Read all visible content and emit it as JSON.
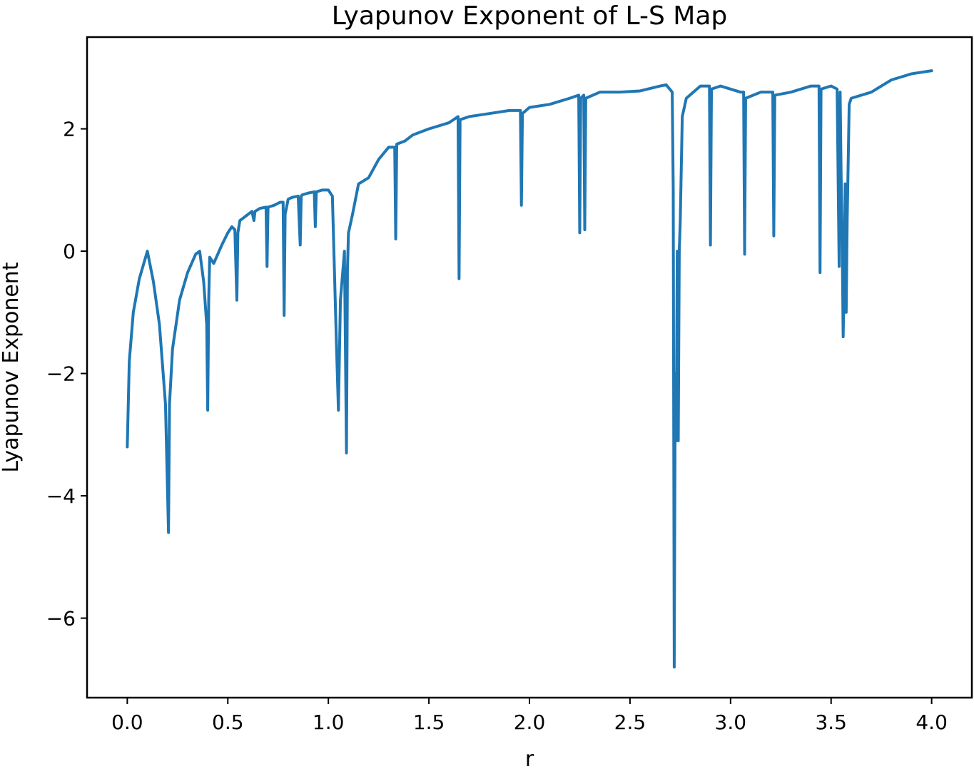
{
  "chart_data": {
    "type": "line",
    "title": "Lyapunov Exponent of L-S Map",
    "xlabel": "r",
    "ylabel": "Lyapunov Exponent",
    "xlim": [
      -0.2,
      4.2
    ],
    "ylim": [
      -7.3,
      3.5
    ],
    "xticks": [
      0.0,
      0.5,
      1.0,
      1.5,
      2.0,
      2.5,
      3.0,
      3.5,
      4.0
    ],
    "xtick_labels": [
      "0.0",
      "0.5",
      "1.0",
      "1.5",
      "2.0",
      "2.5",
      "3.0",
      "3.5",
      "4.0"
    ],
    "yticks": [
      -6,
      -4,
      -2,
      0,
      2
    ],
    "ytick_labels": [
      "−6",
      "−4",
      "−2",
      "0",
      "2"
    ],
    "grid": false,
    "series": [
      {
        "color": "#1f77b4",
        "x": [
          0.0,
          0.01,
          0.03,
          0.06,
          0.1,
          0.13,
          0.16,
          0.19,
          0.205,
          0.21,
          0.225,
          0.26,
          0.3,
          0.34,
          0.36,
          0.38,
          0.395,
          0.4,
          0.405,
          0.41,
          0.43,
          0.47,
          0.5,
          0.52,
          0.535,
          0.545,
          0.55,
          0.56,
          0.58,
          0.6,
          0.62,
          0.63,
          0.635,
          0.66,
          0.69,
          0.695,
          0.7,
          0.73,
          0.76,
          0.775,
          0.78,
          0.785,
          0.8,
          0.82,
          0.85,
          0.86,
          0.865,
          0.87,
          0.9,
          0.93,
          0.935,
          0.94,
          0.97,
          1.0,
          1.02,
          1.04,
          1.05,
          1.06,
          1.08,
          1.09,
          1.095,
          1.1,
          1.12,
          1.15,
          1.2,
          1.25,
          1.3,
          1.33,
          1.335,
          1.34,
          1.38,
          1.42,
          1.5,
          1.6,
          1.645,
          1.65,
          1.655,
          1.7,
          1.8,
          1.9,
          1.955,
          1.96,
          1.965,
          2.0,
          2.1,
          2.2,
          2.245,
          2.25,
          2.255,
          2.27,
          2.275,
          2.28,
          2.35,
          2.45,
          2.55,
          2.65,
          2.68,
          2.71,
          2.715,
          2.72,
          2.725,
          2.73,
          2.735,
          2.74,
          2.745,
          2.75,
          2.76,
          2.78,
          2.85,
          2.895,
          2.9,
          2.905,
          2.95,
          3.05,
          3.065,
          3.07,
          3.075,
          3.15,
          3.21,
          3.215,
          3.22,
          3.3,
          3.4,
          3.44,
          3.445,
          3.45,
          3.5,
          3.53,
          3.54,
          3.545,
          3.55,
          3.555,
          3.56,
          3.565,
          3.57,
          3.575,
          3.58,
          3.59,
          3.6,
          3.7,
          3.8,
          3.9,
          4.0
        ],
        "y": [
          -3.2,
          -1.8,
          -1.0,
          -0.45,
          0.0,
          -0.5,
          -1.2,
          -2.5,
          -4.6,
          -2.5,
          -1.6,
          -0.8,
          -0.35,
          -0.05,
          0.0,
          -0.5,
          -1.2,
          -2.6,
          -0.8,
          -0.1,
          -0.2,
          0.1,
          0.3,
          0.4,
          0.35,
          -0.8,
          0.3,
          0.5,
          0.55,
          0.6,
          0.65,
          0.5,
          0.65,
          0.7,
          0.72,
          -0.25,
          0.72,
          0.75,
          0.8,
          0.8,
          -1.05,
          0.6,
          0.85,
          0.88,
          0.9,
          0.1,
          0.9,
          0.92,
          0.95,
          0.97,
          0.4,
          0.97,
          1.0,
          1.0,
          0.9,
          -1.5,
          -2.6,
          -0.8,
          0.0,
          -3.3,
          -0.3,
          0.3,
          0.6,
          1.1,
          1.2,
          1.5,
          1.7,
          1.7,
          0.2,
          1.75,
          1.8,
          1.9,
          2.0,
          2.1,
          2.2,
          -0.45,
          2.15,
          2.2,
          2.25,
          2.3,
          2.3,
          0.75,
          2.25,
          2.35,
          2.4,
          2.5,
          2.55,
          0.3,
          2.5,
          2.55,
          0.35,
          2.5,
          2.6,
          2.6,
          2.62,
          2.7,
          2.72,
          2.6,
          1.0,
          -6.8,
          -2.0,
          -3.1,
          0.0,
          -3.1,
          0.0,
          0.5,
          2.2,
          2.5,
          2.7,
          2.7,
          0.1,
          2.65,
          2.7,
          2.6,
          2.6,
          -0.05,
          2.5,
          2.6,
          2.6,
          0.25,
          2.55,
          2.6,
          2.7,
          2.7,
          -0.35,
          2.65,
          2.7,
          2.65,
          -0.25,
          2.6,
          1.2,
          0.2,
          -1.4,
          -0.5,
          1.1,
          -1.0,
          0.5,
          2.4,
          2.5,
          2.6,
          2.8,
          2.9,
          2.95
        ]
      }
    ]
  }
}
